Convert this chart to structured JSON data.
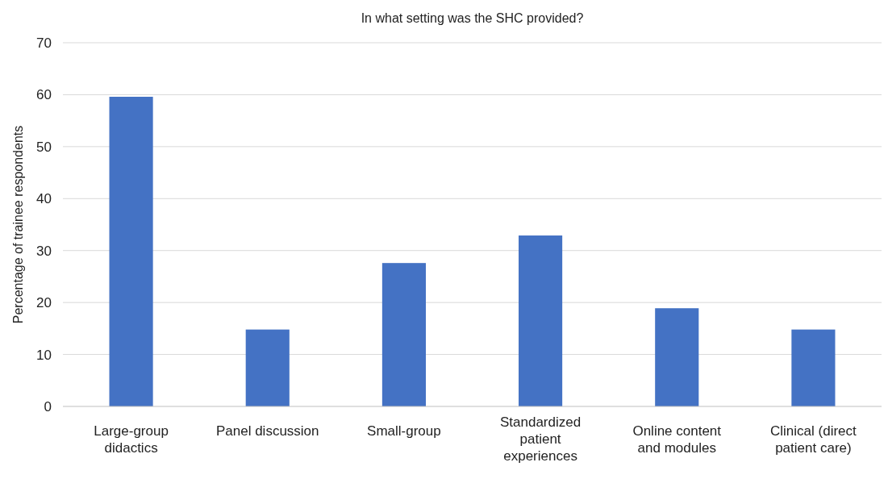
{
  "chart_data": {
    "type": "bar",
    "title": "In what setting was the SHC provided?",
    "ylabel": "Percentage of trainee respondents",
    "categories": [
      "Large-group didactics",
      "Panel discussion",
      "Small-group",
      "Standardized patient experiences",
      "Online content and modules",
      "Clinical (direct patient care)"
    ],
    "values": [
      59.6,
      14.8,
      27.6,
      32.9,
      18.9,
      14.8
    ],
    "color": "#4472c4",
    "ylim": [
      0,
      70
    ],
    "yticks": [
      0,
      10,
      20,
      30,
      40,
      50,
      60,
      70
    ],
    "grid": "y"
  }
}
